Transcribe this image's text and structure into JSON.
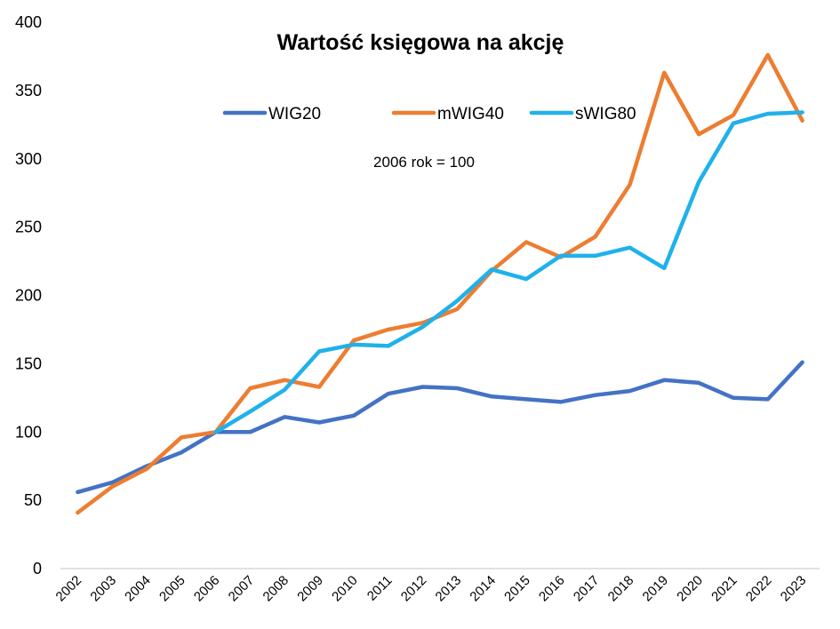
{
  "chart_data": {
    "type": "line",
    "title": "Wartość księgowa na akcję",
    "annotation": "2006 rok = 100",
    "xlabel": "",
    "ylabel": "",
    "ylim": [
      0,
      400
    ],
    "yticks": [
      0,
      50,
      100,
      150,
      200,
      250,
      300,
      350,
      400
    ],
    "grid": false,
    "legend": "top",
    "categories": [
      "2002",
      "2003",
      "2004",
      "2005",
      "2006",
      "2007",
      "2008",
      "2009",
      "2010",
      "2011",
      "2012",
      "2013",
      "2014",
      "2015",
      "2016",
      "2017",
      "2018",
      "2019",
      "2020",
      "2021",
      "2022",
      "2023"
    ],
    "series": [
      {
        "name": "WIG20",
        "color": "#4472c4",
        "values": [
          56,
          63,
          75,
          85,
          100,
          100,
          111,
          107,
          112,
          128,
          133,
          132,
          126,
          124,
          122,
          127,
          130,
          138,
          136,
          125,
          124,
          151
        ]
      },
      {
        "name": "mWIG40",
        "color": "#ed7d31",
        "values": [
          41,
          60,
          73,
          96,
          100,
          132,
          138,
          133,
          167,
          175,
          180,
          190,
          218,
          239,
          228,
          243,
          281,
          363,
          318,
          332,
          376,
          328
        ]
      },
      {
        "name": "sWIG80",
        "color": "#1fb1ea",
        "values": [
          null,
          null,
          null,
          null,
          100,
          115,
          131,
          159,
          164,
          163,
          177,
          196,
          219,
          212,
          229,
          229,
          235,
          220,
          283,
          326,
          333,
          334
        ]
      }
    ]
  }
}
